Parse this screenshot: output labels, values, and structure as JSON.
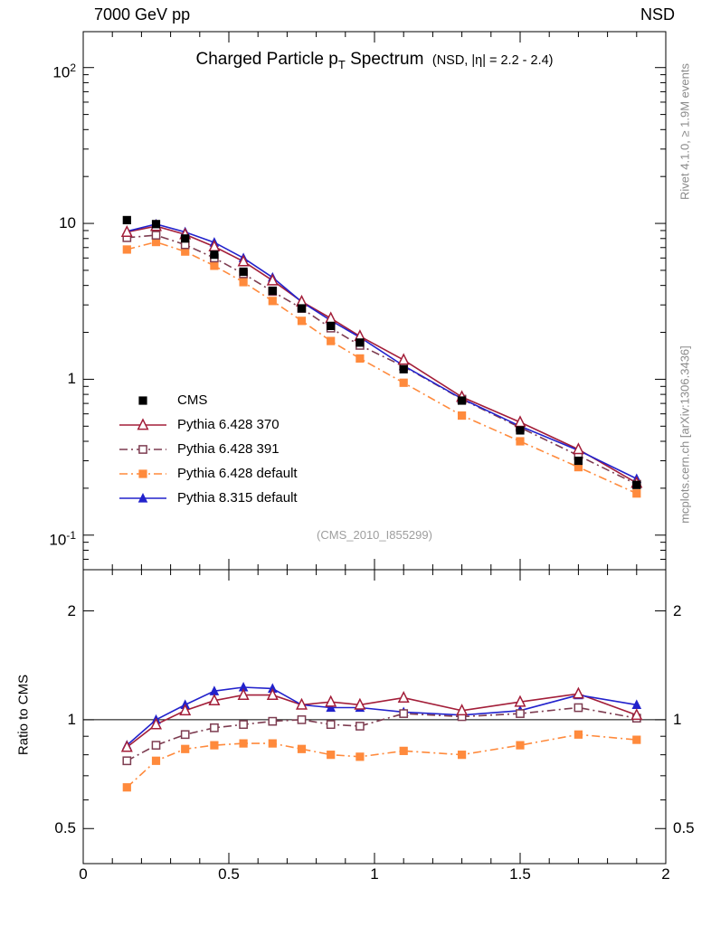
{
  "header": {
    "left": "7000 GeV pp",
    "right": "NSD"
  },
  "side_notes": {
    "top": "Rivet 4.1.0, ≥ 1.9M events",
    "bottom": "mcplots.cern.ch [arXiv:1306.3436]"
  },
  "watermark": "(CMS_2010_I855299)",
  "title_parts": {
    "pre": "Charged Particle p",
    "sub": "T",
    "post": " Spectrum",
    "note": "(NSD, |η| = 2.2 - 2.4)"
  },
  "chart_data": {
    "type": "line",
    "title": "Charged Particle pT Spectrum",
    "subtitle": "(NSD, |η| = 2.2 - 2.4)",
    "xlabel": "",
    "ylabel": "",
    "ratio_ylabel": "Ratio to CMS",
    "y_log": true,
    "ratio_y_log": true,
    "grid": false,
    "legend_position": "middle-left",
    "xlim": [
      0,
      2
    ],
    "ylim": [
      0.06,
      170
    ],
    "ratio_ylim": [
      0.4,
      2.6
    ],
    "x_ticks": [
      0,
      0.5,
      1,
      1.5,
      2
    ],
    "x_tick_labels": [
      "0",
      "0.5",
      "1",
      "1.5",
      "2"
    ],
    "y_ticks": [
      {
        "value": 100,
        "base": "10",
        "exp": "2"
      },
      {
        "value": 10,
        "base": "10",
        "exp": ""
      },
      {
        "value": 1,
        "base": "1",
        "exp": ""
      },
      {
        "value": 0.1,
        "base": "10",
        "exp": "-1"
      }
    ],
    "ratio_y_ticks": [
      {
        "value": 2,
        "label": "2"
      },
      {
        "value": 1,
        "label": "1"
      },
      {
        "value": 0.5,
        "label": "0.5"
      }
    ],
    "x": [
      0.15,
      0.25,
      0.35,
      0.45,
      0.55,
      0.65,
      0.75,
      0.85,
      0.95,
      1.1,
      1.3,
      1.5,
      1.7,
      1.9
    ],
    "series": [
      {
        "name": "CMS",
        "color": "#000000",
        "marker": "square-filled",
        "line": "none",
        "values": [
          10.5,
          9.9,
          8.0,
          6.3,
          4.9,
          3.7,
          2.85,
          2.2,
          1.72,
          1.16,
          0.73,
          0.47,
          0.3,
          0.21
        ],
        "ratio": null
      },
      {
        "name": "Pythia 6.428 370",
        "color": "#a31e39",
        "marker": "triangle-open",
        "line": "solid",
        "values": [
          8.8,
          9.6,
          8.5,
          7.1,
          5.7,
          4.3,
          3.15,
          2.46,
          1.89,
          1.33,
          0.77,
          0.53,
          0.355,
          0.216
        ],
        "ratio": [
          0.84,
          0.97,
          1.06,
          1.13,
          1.17,
          1.17,
          1.1,
          1.12,
          1.1,
          1.15,
          1.06,
          1.12,
          1.18,
          1.03
        ]
      },
      {
        "name": "Pythia 6.428 391",
        "color": "#7d3c50",
        "marker": "square-open",
        "line": "dashdot",
        "values": [
          8.1,
          8.4,
          7.3,
          6.0,
          4.75,
          3.66,
          2.85,
          2.13,
          1.65,
          1.21,
          0.745,
          0.49,
          0.324,
          0.212
        ],
        "ratio": [
          0.77,
          0.85,
          0.91,
          0.95,
          0.97,
          0.99,
          1.0,
          0.97,
          0.96,
          1.04,
          1.02,
          1.04,
          1.08,
          1.01
        ]
      },
      {
        "name": "Pythia 6.428 default",
        "color": "#ff8a3c",
        "marker": "square-filled",
        "line": "dashdot",
        "values": [
          6.8,
          7.6,
          6.6,
          5.35,
          4.2,
          3.18,
          2.37,
          1.76,
          1.36,
          0.95,
          0.585,
          0.4,
          0.273,
          0.185
        ],
        "ratio": [
          0.65,
          0.77,
          0.83,
          0.85,
          0.86,
          0.86,
          0.83,
          0.8,
          0.79,
          0.82,
          0.8,
          0.85,
          0.91,
          0.88
        ]
      },
      {
        "name": "Pythia 8.315 default",
        "color": "#2222cc",
        "marker": "triangle-filled",
        "line": "solid",
        "values": [
          8.9,
          9.9,
          8.8,
          7.55,
          6.0,
          4.5,
          3.14,
          2.38,
          1.86,
          1.22,
          0.75,
          0.5,
          0.35,
          0.23
        ],
        "ratio": [
          0.85,
          1.0,
          1.1,
          1.2,
          1.23,
          1.22,
          1.1,
          1.08,
          1.08,
          1.05,
          1.03,
          1.06,
          1.17,
          1.1
        ]
      }
    ]
  }
}
